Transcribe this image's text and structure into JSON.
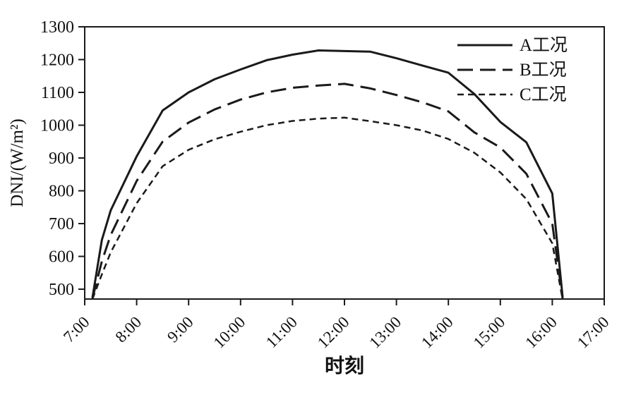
{
  "chart_data": {
    "type": "line",
    "title": "",
    "xlabel": "时刻",
    "ylabel": "DNI/(W/m²)",
    "xlim": [
      7,
      17
    ],
    "ylim": [
      470,
      1300
    ],
    "grid": false,
    "legend_position": "top-right",
    "axis_color": "#1a1a1a",
    "x_tick_labels": [
      "7:00",
      "8:00",
      "9:00",
      "10:00",
      "11:00",
      "12:00",
      "13:00",
      "14:00",
      "15:00",
      "16:00",
      "17:00"
    ],
    "x_tick_values": [
      7,
      8,
      9,
      10,
      11,
      12,
      13,
      14,
      15,
      16,
      17
    ],
    "y_tick_values": [
      500,
      600,
      700,
      800,
      900,
      1000,
      1100,
      1200,
      1300
    ],
    "x": [
      7.15,
      7.33,
      7.5,
      8.0,
      8.5,
      9.0,
      9.5,
      10.0,
      10.5,
      11.0,
      11.5,
      12.0,
      12.5,
      13.0,
      13.5,
      14.0,
      14.5,
      15.0,
      15.5,
      16.0,
      16.2
    ],
    "series": [
      {
        "name": "A工况",
        "line_style": "solid",
        "stroke_width": 3,
        "dash": "",
        "color": "#1a1a1a",
        "values": [
          475,
          650,
          740,
          905,
          1045,
          1100,
          1140,
          1170,
          1198,
          1215,
          1228,
          1226,
          1224,
          1204,
          1182,
          1160,
          1095,
          1010,
          948,
          792,
          475
        ]
      },
      {
        "name": "B工况",
        "line_style": "long-dash",
        "stroke_width": 3,
        "dash": "22,10",
        "color": "#1a1a1a",
        "values": [
          472,
          585,
          665,
          830,
          950,
          1008,
          1048,
          1078,
          1100,
          1114,
          1121,
          1126,
          1112,
          1092,
          1070,
          1042,
          978,
          932,
          852,
          700,
          470
        ]
      },
      {
        "name": "C工况",
        "line_style": "short-dash",
        "stroke_width": 2.5,
        "dash": "9,6",
        "color": "#1a1a1a",
        "values": [
          470,
          545,
          612,
          762,
          875,
          925,
          957,
          980,
          1000,
          1013,
          1020,
          1023,
          1012,
          1000,
          984,
          958,
          916,
          856,
          775,
          640,
          468
        ]
      }
    ]
  }
}
